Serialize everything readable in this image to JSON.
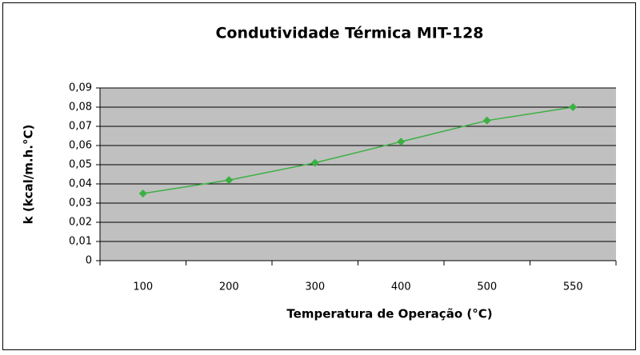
{
  "chart_data": {
    "type": "line",
    "title": "Condutividade Térmica MIT-128",
    "x_label": "Temperatura de Operação (°C)",
    "y_label": "k (kcal/m.h.°C)",
    "categories": [
      "100",
      "200",
      "300",
      "400",
      "500",
      "550"
    ],
    "values": [
      0.035,
      0.042,
      0.051,
      0.062,
      0.073,
      0.08
    ],
    "color": "#3cb043",
    "ylim": [
      0,
      0.09
    ],
    "yticks": [
      0,
      {
        "value": 0.01,
        "label": "0,01"
      },
      {
        "value": 0.02,
        "label": "0,02"
      },
      {
        "value": 0.03,
        "label": "0,03"
      },
      {
        "value": 0.04,
        "label": "0,04"
      },
      {
        "value": 0.05,
        "label": "0,05"
      },
      {
        "value": 0.06,
        "label": "0,06"
      },
      {
        "value": 0.07,
        "label": "0,07"
      },
      {
        "value": 0.08,
        "label": "0,08"
      },
      {
        "value": 0.09,
        "label": "0,09"
      }
    ],
    "grid": true
  }
}
